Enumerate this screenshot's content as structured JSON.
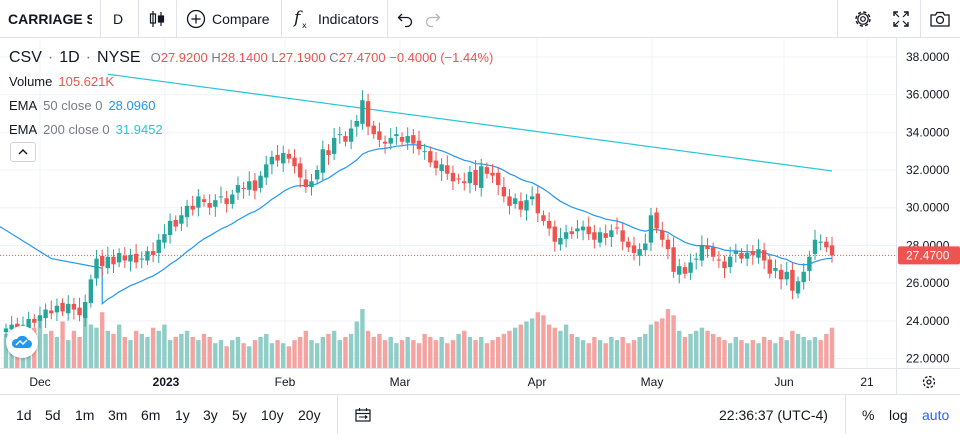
{
  "toolbar": {
    "symbol": "CARRIAGE SERVICES",
    "interval": "D",
    "compare_label": "Compare",
    "indicators_label": "Indicators"
  },
  "legend": {
    "ticker": "CSV",
    "interval": "1D",
    "exchange": "NYSE",
    "o_label": "O",
    "o": "27.9200",
    "h_label": "H",
    "h": "28.1400",
    "l_label": "L",
    "l": "27.1900",
    "c_label": "C",
    "c": "27.4700",
    "change": "−0.4000 (−1.44%)",
    "volume_label": "Volume",
    "volume": "105.621K",
    "ema50_name": "EMA",
    "ema50_params": "50 close 0",
    "ema50_value": "28.0960",
    "ema200_name": "EMA",
    "ema200_params": "200 close 0",
    "ema200_value": "31.9452"
  },
  "colors": {
    "up": "#26a69a",
    "down": "#ef5350",
    "ema50": "#2196f3",
    "ema200": "#26c6da",
    "up_volume": "#8fcdc7",
    "down_volume": "#f5a3a1"
  },
  "chart_data": {
    "type": "candlestick",
    "ylim": [
      21.5,
      39.0
    ],
    "price_ticks": [
      "38.0000",
      "36.0000",
      "34.0000",
      "32.0000",
      "30.0000",
      "28.0000",
      "26.0000",
      "24.0000",
      "22.0000"
    ],
    "price_tick_values": [
      38,
      36,
      34,
      32,
      30,
      28,
      26,
      24,
      22
    ],
    "last_price": "27.4700",
    "last_price_value": 27.47,
    "time_labels": [
      "Dec",
      "2023",
      "Feb",
      "Mar",
      "Apr",
      "May",
      "Jun",
      "21"
    ],
    "closes": [
      23.6,
      23.8,
      23.5,
      23.7,
      24.1,
      23.9,
      24.3,
      24.6,
      24.4,
      24.8,
      24.5,
      24.9,
      24.6,
      24.3,
      25.0,
      26.2,
      27.3,
      26.9,
      27.4,
      27.0,
      27.6,
      27.2,
      27.5,
      27.1,
      27.3,
      27.7,
      27.5,
      28.3,
      28.6,
      29.3,
      29.0,
      29.6,
      30.1,
      29.9,
      30.6,
      30.3,
      30.0,
      30.4,
      30.6,
      30.2,
      30.7,
      31.2,
      31.0,
      31.4,
      30.9,
      31.7,
      32.3,
      32.7,
      32.5,
      32.9,
      32.6,
      32.2,
      31.6,
      31.1,
      31.4,
      32.0,
      33.1,
      32.8,
      33.7,
      33.9,
      33.5,
      34.2,
      34.6,
      35.7,
      34.3,
      33.9,
      33.6,
      33.4,
      33.7,
      33.9,
      33.5,
      33.8,
      33.4,
      33.1,
      33.0,
      32.4,
      32.1,
      32.3,
      31.8,
      31.4,
      31.5,
      31.3,
      31.9,
      31.2,
      32.2,
      31.8,
      31.7,
      31.2,
      30.6,
      30.1,
      30.5,
      29.9,
      30.4,
      30.6,
      29.7,
      29.3,
      28.9,
      28.2,
      28.4,
      28.7,
      28.6,
      28.9,
      29.0,
      28.6,
      28.3,
      28.7,
      28.4,
      28.8,
      28.9,
      28.2,
      27.9,
      27.6,
      27.8,
      28.1,
      29.6,
      28.9,
      28.3,
      27.8,
      26.6,
      26.9,
      26.5,
      27.1,
      27.3,
      28.0,
      27.8,
      27.4,
      27.2,
      26.8,
      27.4,
      27.7,
      27.3,
      27.6,
      27.5,
      27.8,
      27.2,
      26.5,
      26.8,
      26.2,
      26.6,
      25.6,
      26.1,
      26.6,
      27.4,
      28.3,
      28.2,
      27.9,
      27.47
    ],
    "volumes": [
      0.55,
      0.6,
      0.45,
      0.7,
      0.5,
      0.65,
      0.8,
      0.55,
      0.6,
      0.5,
      0.75,
      0.45,
      0.6,
      0.5,
      0.85,
      0.7,
      0.65,
      0.9,
      0.6,
      0.55,
      0.7,
      0.5,
      0.45,
      0.6,
      0.55,
      0.5,
      0.65,
      0.6,
      0.7,
      0.45,
      0.5,
      0.55,
      0.6,
      0.5,
      0.45,
      0.55,
      0.5,
      0.4,
      0.45,
      0.35,
      0.45,
      0.5,
      0.4,
      0.35,
      0.45,
      0.5,
      0.55,
      0.4,
      0.45,
      0.4,
      0.35,
      0.45,
      0.5,
      0.6,
      0.45,
      0.4,
      0.5,
      0.55,
      0.6,
      0.45,
      0.5,
      0.55,
      0.75,
      0.95,
      0.6,
      0.5,
      0.55,
      0.45,
      0.5,
      0.4,
      0.45,
      0.5,
      0.45,
      0.4,
      0.55,
      0.5,
      0.45,
      0.5,
      0.4,
      0.45,
      0.55,
      0.6,
      0.5,
      0.45,
      0.5,
      0.4,
      0.45,
      0.5,
      0.55,
      0.6,
      0.65,
      0.7,
      0.75,
      0.8,
      0.9,
      0.85,
      0.7,
      0.65,
      0.6,
      0.7,
      0.55,
      0.5,
      0.45,
      0.4,
      0.5,
      0.45,
      0.4,
      0.5,
      0.45,
      0.5,
      0.4,
      0.45,
      0.5,
      0.55,
      0.7,
      0.75,
      0.8,
      0.95,
      0.85,
      0.6,
      0.5,
      0.55,
      0.6,
      0.65,
      0.6,
      0.55,
      0.5,
      0.45,
      0.4,
      0.5,
      0.45,
      0.4,
      0.45,
      0.4,
      0.5,
      0.45,
      0.4,
      0.5,
      0.45,
      0.6,
      0.55,
      0.5,
      0.45,
      0.5,
      0.45,
      0.55,
      0.65
    ]
  },
  "time_axis": {
    "year_label": "2023"
  },
  "ranges": [
    "1d",
    "5d",
    "1m",
    "3m",
    "6m",
    "1y",
    "3y",
    "5y",
    "10y",
    "20y"
  ],
  "bottom": {
    "clock": "22:36:37 (UTC-4)",
    "percent_label": "%",
    "log_label": "log",
    "auto_label": "auto"
  }
}
